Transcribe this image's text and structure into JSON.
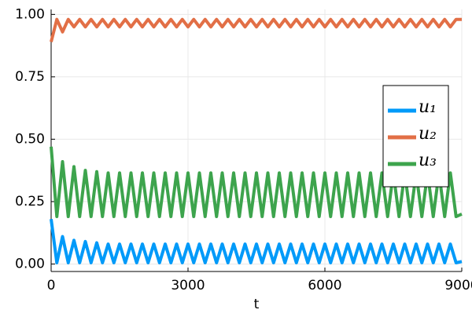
{
  "chart_data": {
    "type": "line",
    "xlabel": "t",
    "x": [
      0,
      125,
      250,
      375,
      500,
      625,
      750,
      875,
      1000,
      1125,
      1250,
      1375,
      1500,
      1625,
      1750,
      1875,
      2000,
      2125,
      2250,
      2375,
      2500,
      2625,
      2750,
      2875,
      3000,
      3125,
      3250,
      3375,
      3500,
      3625,
      3750,
      3875,
      4000,
      4125,
      4250,
      4375,
      4500,
      4625,
      4750,
      4875,
      5000,
      5125,
      5250,
      5375,
      5500,
      5625,
      5750,
      5875,
      6000,
      6125,
      6250,
      6375,
      6500,
      6625,
      6750,
      6875,
      7000,
      7125,
      7250,
      7375,
      7500,
      7625,
      7750,
      7875,
      8000,
      8125,
      8250,
      8375,
      8500,
      8625,
      8750,
      8875,
      9000
    ],
    "series": [
      {
        "name": "u₁",
        "color": "#009af9",
        "values": [
          0.18,
          0.005,
          0.11,
          0.005,
          0.095,
          0.005,
          0.09,
          0.005,
          0.085,
          0.005,
          0.08,
          0.005,
          0.08,
          0.005,
          0.08,
          0.005,
          0.08,
          0.005,
          0.08,
          0.005,
          0.08,
          0.005,
          0.08,
          0.005,
          0.08,
          0.005,
          0.08,
          0.005,
          0.08,
          0.005,
          0.08,
          0.005,
          0.08,
          0.005,
          0.08,
          0.005,
          0.08,
          0.005,
          0.08,
          0.005,
          0.08,
          0.005,
          0.08,
          0.005,
          0.08,
          0.005,
          0.08,
          0.005,
          0.08,
          0.005,
          0.08,
          0.005,
          0.08,
          0.005,
          0.08,
          0.005,
          0.08,
          0.005,
          0.08,
          0.005,
          0.08,
          0.005,
          0.08,
          0.005,
          0.08,
          0.005,
          0.08,
          0.005,
          0.08,
          0.005,
          0.08,
          0.005,
          0.01
        ]
      },
      {
        "name": "u₂",
        "color": "#e26f46",
        "values": [
          0.89,
          0.98,
          0.93,
          0.98,
          0.95,
          0.98,
          0.95,
          0.98,
          0.95,
          0.98,
          0.95,
          0.98,
          0.95,
          0.98,
          0.95,
          0.98,
          0.95,
          0.98,
          0.95,
          0.98,
          0.95,
          0.98,
          0.95,
          0.98,
          0.95,
          0.98,
          0.95,
          0.98,
          0.95,
          0.98,
          0.95,
          0.98,
          0.95,
          0.98,
          0.95,
          0.98,
          0.95,
          0.98,
          0.95,
          0.98,
          0.95,
          0.98,
          0.95,
          0.98,
          0.95,
          0.98,
          0.95,
          0.98,
          0.95,
          0.98,
          0.95,
          0.98,
          0.95,
          0.98,
          0.95,
          0.98,
          0.95,
          0.98,
          0.95,
          0.98,
          0.95,
          0.98,
          0.95,
          0.98,
          0.95,
          0.98,
          0.95,
          0.98,
          0.95,
          0.98,
          0.95,
          0.98,
          0.98
        ]
      },
      {
        "name": "u₃",
        "color": "#3da44d",
        "values": [
          0.47,
          0.19,
          0.41,
          0.19,
          0.39,
          0.19,
          0.375,
          0.19,
          0.37,
          0.19,
          0.365,
          0.19,
          0.365,
          0.19,
          0.365,
          0.19,
          0.365,
          0.19,
          0.365,
          0.19,
          0.365,
          0.19,
          0.365,
          0.19,
          0.365,
          0.19,
          0.365,
          0.19,
          0.365,
          0.19,
          0.365,
          0.19,
          0.365,
          0.19,
          0.365,
          0.19,
          0.365,
          0.19,
          0.365,
          0.19,
          0.365,
          0.19,
          0.365,
          0.19,
          0.365,
          0.19,
          0.365,
          0.19,
          0.365,
          0.19,
          0.365,
          0.19,
          0.365,
          0.19,
          0.365,
          0.19,
          0.365,
          0.19,
          0.365,
          0.19,
          0.365,
          0.19,
          0.365,
          0.19,
          0.365,
          0.19,
          0.365,
          0.19,
          0.365,
          0.19,
          0.365,
          0.19,
          0.2
        ]
      }
    ],
    "xlim": [
      0,
      9000
    ],
    "xticks": [
      0,
      3000,
      6000,
      9000
    ],
    "ylim": [
      -0.03,
      1.02
    ],
    "yticks": [
      {
        "value": 0,
        "label": "0.00"
      },
      0.25,
      {
        "value": 0.5,
        "label": "0.50"
      },
      0.75,
      {
        "value": 1,
        "label": "1.00"
      }
    ],
    "grid": true,
    "legend": "right"
  }
}
